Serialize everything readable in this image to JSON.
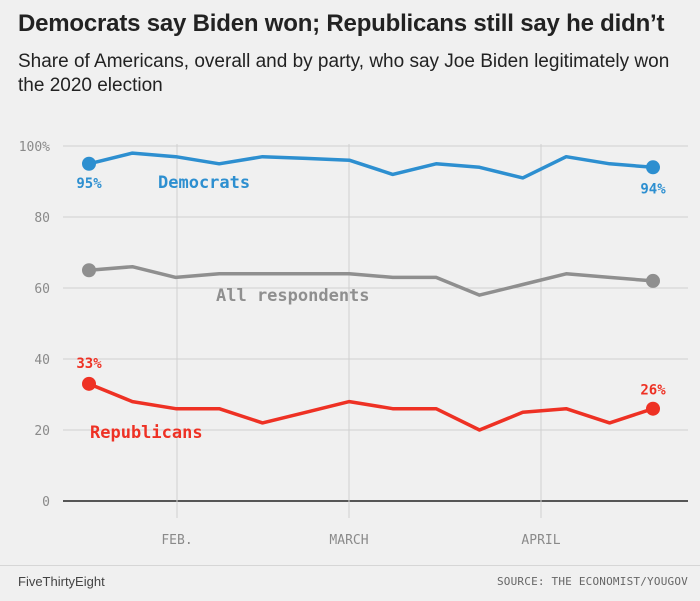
{
  "title": "Democrats say Biden won; Republicans still say he didn’t",
  "subtitle": "Share of Americans, overall and by party, who say Joe Biden legitimately won the 2020 election",
  "footer": {
    "brand": "FiveThirtyEight",
    "source": "SOURCE: THE ECONOMIST/YOUGOV"
  },
  "chart_data": {
    "type": "line",
    "x_ticks": [
      "FEB.",
      "MARCH",
      "APRIL"
    ],
    "y_ticks": [
      "0",
      "20",
      "40",
      "60",
      "80",
      "100%"
    ],
    "ylim": [
      0,
      100
    ],
    "grid": true,
    "series": [
      {
        "name": "Democrats",
        "color": "#2d8fd0",
        "values": [
          95,
          98,
          97,
          95,
          97,
          96.5,
          96,
          92,
          95,
          94,
          91,
          97,
          95,
          94
        ],
        "start_label": "95%",
        "end_label": "94%"
      },
      {
        "name": "All respondents",
        "color": "#8f8f8f",
        "values": [
          65,
          66,
          63,
          64,
          64,
          64,
          64,
          63,
          63,
          58,
          61,
          64,
          63,
          62
        ],
        "start_label": "",
        "end_label": ""
      },
      {
        "name": "Republicans",
        "color": "#ee3124",
        "values": [
          33,
          28,
          26,
          26,
          22,
          25,
          28,
          26,
          26,
          20,
          25,
          26,
          22,
          26
        ],
        "start_label": "33%",
        "end_label": "26%"
      }
    ]
  }
}
